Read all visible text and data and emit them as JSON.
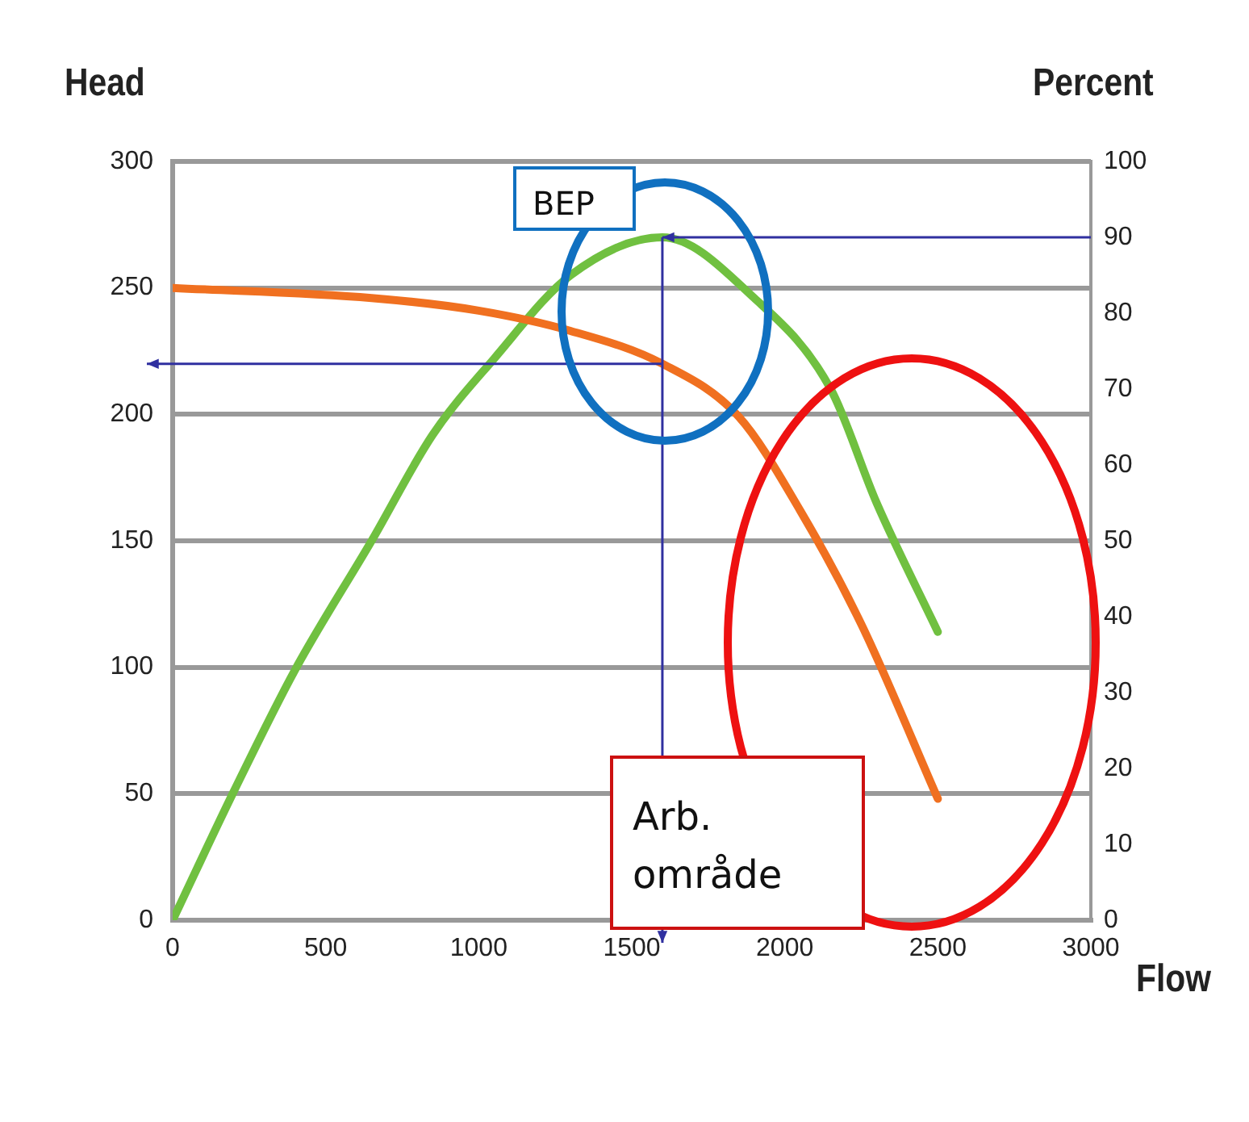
{
  "chart_data": {
    "type": "line",
    "xlabel": "Flow",
    "ylabel": "Head",
    "y2label": "Percent",
    "xlim": [
      0,
      3000
    ],
    "xticks": [
      0,
      500,
      1000,
      1500,
      2000,
      2500,
      3000
    ],
    "ylim": [
      0,
      300
    ],
    "yticks": [
      0,
      50,
      100,
      150,
      200,
      250,
      300
    ],
    "y2lim": [
      0,
      100
    ],
    "y2ticks": [
      0,
      10,
      20,
      30,
      40,
      50,
      60,
      70,
      80,
      90,
      100
    ],
    "grid": "y",
    "line_style": "solid",
    "series": [
      {
        "color": "#f07020",
        "x": [
          0,
          650,
          1000,
          1300,
          1600,
          1850,
          2050,
          2250,
          2500
        ],
        "values": [
          250,
          246,
          241,
          233,
          220,
          199,
          162,
          117,
          48
        ]
      },
      {
        "color": "#70c040",
        "axis": "y2",
        "x": [
          0,
          200,
          400,
          650,
          850,
          1050,
          1300,
          1600,
          1900,
          2150,
          2300,
          2500
        ],
        "values": [
          0,
          17,
          33,
          50,
          64,
          74,
          85,
          90,
          82,
          70,
          55,
          38
        ]
      }
    ],
    "ref_lines": [
      {
        "axis": "y",
        "value": 220,
        "color": "#3030a0"
      },
      {
        "axis": "y2",
        "value": 90,
        "color": "#3030a0"
      },
      {
        "axis": "x",
        "value": 1600,
        "color": "#3030a0"
      }
    ],
    "annotations": [
      "BEP",
      "Arb. område"
    ]
  }
}
